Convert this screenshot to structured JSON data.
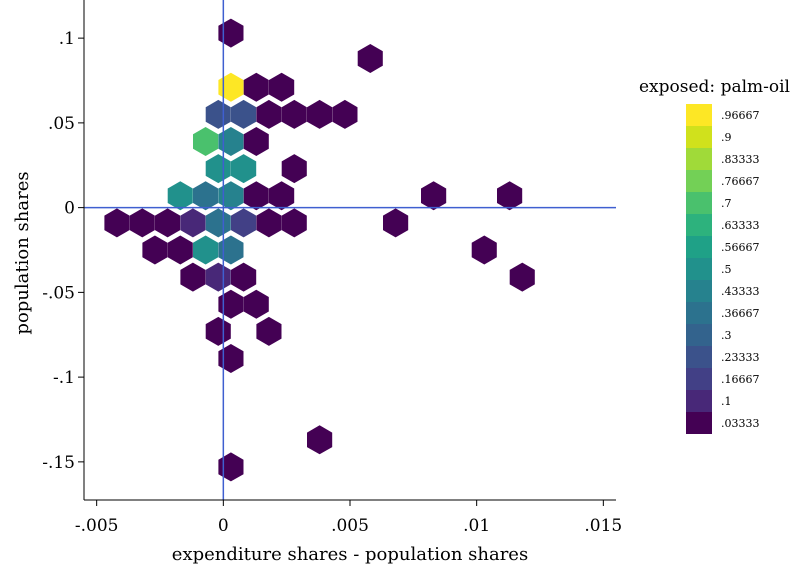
{
  "chart_data": {
    "type": "hexbin",
    "xlabel": "expenditure shares - population shares",
    "ylabel": "population shares",
    "xlim": [
      -0.0055,
      0.0155
    ],
    "ylim": [
      -0.1725,
      0.1225
    ],
    "xticks": [
      -0.005,
      0,
      0.005,
      0.01,
      0.015
    ],
    "xtick_labels": [
      "-.005",
      "0",
      ".005",
      ".01",
      ".015"
    ],
    "yticks": [
      -0.15,
      -0.1,
      -0.05,
      0,
      0.05,
      0.1
    ],
    "ytick_labels": [
      "-.15",
      "-.1",
      "-.05",
      "0",
      ".05",
      ".1"
    ],
    "reference_lines": {
      "x": 0,
      "y": 0,
      "color": "#3f5fd0"
    },
    "grid": false,
    "legend": {
      "title": "exposed: palm-oil",
      "placement": "right",
      "entries": [
        {
          "label": ".96667",
          "color": "#fde725"
        },
        {
          "label": ".9",
          "color": "#d0e11c"
        },
        {
          "label": ".83333",
          "color": "#a0da39"
        },
        {
          "label": ".76667",
          "color": "#73d056"
        },
        {
          "label": ".7",
          "color": "#4ac16d"
        },
        {
          "label": ".63333",
          "color": "#2db27d"
        },
        {
          "label": ".56667",
          "color": "#1fa187"
        },
        {
          "label": ".5",
          "color": "#21918c"
        },
        {
          "label": ".43333",
          "color": "#26828e"
        },
        {
          "label": ".36667",
          "color": "#2c728e"
        },
        {
          "label": ".3",
          "color": "#33638d"
        },
        {
          "label": ".23333",
          "color": "#3b528b"
        },
        {
          "label": ".16667",
          "color": "#424086"
        },
        {
          "label": ".1",
          "color": "#482878"
        },
        {
          "label": ".03333",
          "color": "#440154"
        }
      ]
    },
    "points": [
      {
        "x": 0.0003,
        "y": 0.103,
        "value": 0.03333
      },
      {
        "x": 0.0058,
        "y": 0.088,
        "value": 0.03333
      },
      {
        "x": 0.0003,
        "y": 0.071,
        "value": 0.96667
      },
      {
        "x": 0.0013,
        "y": 0.071,
        "value": 0.03333
      },
      {
        "x": 0.0023,
        "y": 0.071,
        "value": 0.03333
      },
      {
        "x": -0.0002,
        "y": 0.055,
        "value": 0.23333
      },
      {
        "x": 0.0008,
        "y": 0.055,
        "value": 0.23333
      },
      {
        "x": 0.0018,
        "y": 0.055,
        "value": 0.03333
      },
      {
        "x": 0.0028,
        "y": 0.055,
        "value": 0.03333
      },
      {
        "x": 0.0038,
        "y": 0.055,
        "value": 0.03333
      },
      {
        "x": 0.0048,
        "y": 0.055,
        "value": 0.03333
      },
      {
        "x": -0.0007,
        "y": 0.039,
        "value": 0.7
      },
      {
        "x": 0.0003,
        "y": 0.039,
        "value": 0.43333
      },
      {
        "x": 0.0013,
        "y": 0.039,
        "value": 0.03333
      },
      {
        "x": -0.0002,
        "y": 0.023,
        "value": 0.5
      },
      {
        "x": 0.0008,
        "y": 0.023,
        "value": 0.5
      },
      {
        "x": 0.0028,
        "y": 0.023,
        "value": 0.03333
      },
      {
        "x": -0.0017,
        "y": 0.007,
        "value": 0.5
      },
      {
        "x": -0.0007,
        "y": 0.007,
        "value": 0.36667
      },
      {
        "x": 0.0003,
        "y": 0.007,
        "value": 0.43333
      },
      {
        "x": 0.0013,
        "y": 0.007,
        "value": 0.03333
      },
      {
        "x": 0.0023,
        "y": 0.007,
        "value": 0.03333
      },
      {
        "x": 0.0083,
        "y": 0.007,
        "value": 0.03333
      },
      {
        "x": 0.0113,
        "y": 0.007,
        "value": 0.03333
      },
      {
        "x": -0.0042,
        "y": -0.009,
        "value": 0.03333
      },
      {
        "x": -0.0032,
        "y": -0.009,
        "value": 0.03333
      },
      {
        "x": -0.0022,
        "y": -0.009,
        "value": 0.03333
      },
      {
        "x": -0.0012,
        "y": -0.009,
        "value": 0.1
      },
      {
        "x": -0.0002,
        "y": -0.009,
        "value": 0.36667
      },
      {
        "x": 0.0008,
        "y": -0.009,
        "value": 0.16667
      },
      {
        "x": 0.0018,
        "y": -0.009,
        "value": 0.03333
      },
      {
        "x": 0.0028,
        "y": -0.009,
        "value": 0.03333
      },
      {
        "x": 0.0068,
        "y": -0.009,
        "value": 0.03333
      },
      {
        "x": -0.0027,
        "y": -0.025,
        "value": 0.03333
      },
      {
        "x": -0.0017,
        "y": -0.025,
        "value": 0.03333
      },
      {
        "x": -0.0007,
        "y": -0.025,
        "value": 0.5
      },
      {
        "x": 0.0003,
        "y": -0.025,
        "value": 0.36667
      },
      {
        "x": 0.0103,
        "y": -0.025,
        "value": 0.03333
      },
      {
        "x": -0.0012,
        "y": -0.041,
        "value": 0.03333
      },
      {
        "x": -0.0002,
        "y": -0.041,
        "value": 0.1
      },
      {
        "x": 0.0008,
        "y": -0.041,
        "value": 0.03333
      },
      {
        "x": 0.0118,
        "y": -0.041,
        "value": 0.03333
      },
      {
        "x": 0.0003,
        "y": -0.057,
        "value": 0.03333
      },
      {
        "x": 0.0013,
        "y": -0.057,
        "value": 0.03333
      },
      {
        "x": -0.0002,
        "y": -0.073,
        "value": 0.03333
      },
      {
        "x": 0.0018,
        "y": -0.073,
        "value": 0.03333
      },
      {
        "x": 0.0003,
        "y": -0.089,
        "value": 0.03333
      },
      {
        "x": 0.0038,
        "y": -0.137,
        "value": 0.03333
      },
      {
        "x": 0.0003,
        "y": -0.153,
        "value": 0.03333
      }
    ]
  }
}
